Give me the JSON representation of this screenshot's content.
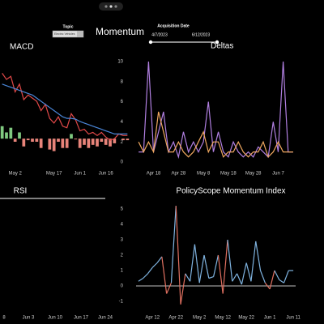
{
  "header": {
    "title": "Momentum",
    "topic_label": "Topic",
    "topic_value": "Electric Vehicles",
    "date_label": "Acquisition Date",
    "date_start": "4/7/2023",
    "date_end": "6/12/2023"
  },
  "chart_data": [
    {
      "type": "combo",
      "title": "MACD",
      "categories": [
        null,
        null,
        null,
        "May 2",
        null,
        null,
        null,
        null,
        null,
        null,
        null,
        null,
        "May 17",
        null,
        null,
        null,
        null,
        null,
        "Jun 1",
        null,
        null,
        null,
        null,
        null,
        "Jun 16",
        null,
        null,
        null,
        null,
        null
      ],
      "ylim": [
        -1.5,
        5
      ],
      "series": [
        {
          "kind": "bar",
          "color": "#7fc97f",
          "negative_color": "#e8847a",
          "values": [
            0.8,
            0.4,
            0.7,
            -0.2,
            0.4,
            -0.5,
            -0.1,
            -0.2,
            -0.2,
            -0.6,
            0,
            -0.7,
            -0.8,
            -0.2,
            -0.6,
            -0.6,
            0.3,
            -0.05,
            -0.6,
            -0.4,
            -0.6,
            -0.4,
            -0.5,
            -0.2,
            -0.4,
            -0.5,
            -0.3,
            0,
            -0.1,
            -0.1
          ]
        },
        {
          "kind": "line",
          "color": "#e04848",
          "values": [
            4.2,
            3.8,
            4.0,
            3.0,
            3.5,
            2.5,
            2.8,
            2.6,
            2.4,
            1.8,
            2.2,
            1.3,
            1.0,
            1.4,
            0.8,
            0.7,
            1.6,
            1.2,
            0.5,
            0.6,
            0.3,
            0.4,
            0.2,
            0.4,
            0.1,
            -0.1,
            0.0,
            0.3,
            0.2,
            0.2
          ]
        },
        {
          "kind": "line",
          "color": "#4a86d8",
          "values": [
            3.5,
            3.4,
            3.3,
            3.2,
            3.1,
            3.0,
            2.9,
            2.8,
            2.6,
            2.4,
            2.2,
            2.0,
            1.8,
            1.6,
            1.4,
            1.3,
            1.3,
            1.25,
            1.1,
            1.0,
            0.9,
            0.8,
            0.7,
            0.6,
            0.5,
            0.4,
            0.3,
            0.3,
            0.3,
            0.3
          ]
        }
      ]
    },
    {
      "type": "line",
      "title": "Deltas",
      "categories": [
        null,
        null,
        null,
        "Apr 18",
        null,
        null,
        null,
        null,
        "Apr 28",
        null,
        null,
        null,
        null,
        "May 8",
        null,
        null,
        null,
        null,
        "May 18",
        null,
        null,
        null,
        null,
        "May 28",
        null,
        null,
        null,
        null,
        "Jun 7",
        null,
        null,
        null
      ],
      "ylim": [
        0,
        10
      ],
      "yticks": [
        0,
        2,
        4,
        6,
        8,
        10
      ],
      "series": [
        {
          "color": "#b07fe0",
          "values": [
            1,
            1,
            10,
            1,
            3,
            5,
            1,
            2,
            0.5,
            3,
            1,
            2,
            1,
            2,
            6,
            1,
            3,
            1,
            0.5,
            2,
            1,
            0.5,
            1,
            0.5,
            1.5,
            1,
            0.5,
            4,
            1,
            10,
            1,
            1
          ]
        },
        {
          "color": "#f0a860",
          "values": [
            2,
            1,
            2,
            1,
            5,
            3,
            1,
            1,
            2,
            1,
            0.5,
            1,
            2,
            3,
            1,
            2,
            2,
            0.5,
            1,
            1,
            2,
            1,
            0.5,
            1,
            1,
            2,
            0.5,
            1,
            2,
            1,
            1,
            1
          ]
        }
      ]
    },
    {
      "type": "line",
      "title": "RSI",
      "categories": [
        "8",
        "Jun 3",
        "Jun 10",
        "Jun 17",
        "Jun 24"
      ]
    },
    {
      "type": "signed",
      "title": "PolicyScope Momentum Index",
      "categories": [
        null,
        null,
        null,
        "Apr 12",
        null,
        null,
        null,
        null,
        "Apr 22",
        null,
        null,
        null,
        null,
        "May 2",
        null,
        null,
        null,
        null,
        "May 12",
        null,
        null,
        null,
        null,
        "May 22",
        null,
        null,
        null,
        null,
        "Jun 1",
        null,
        null,
        null,
        null,
        "Jun 11"
      ],
      "ylim": [
        -1,
        5
      ],
      "yticks": [
        -1,
        0,
        1,
        2,
        3,
        4,
        5
      ],
      "zero_line": true,
      "color": "#7fb3e0",
      "negative_color": "#e07060",
      "values": [
        0.3,
        0.5,
        0.8,
        1.2,
        1.5,
        1.9,
        -0.5,
        0.2,
        5.2,
        -1.2,
        0.8,
        0.3,
        2.7,
        0.2,
        2.0,
        0.5,
        0.6,
        2.0,
        -0.5,
        3.0,
        0.3,
        0.8,
        0.1,
        1.5,
        0.3,
        2.9,
        1.0,
        0.2,
        -0.2,
        1.0,
        0.4,
        0.2,
        1.0,
        1.0
      ]
    }
  ]
}
